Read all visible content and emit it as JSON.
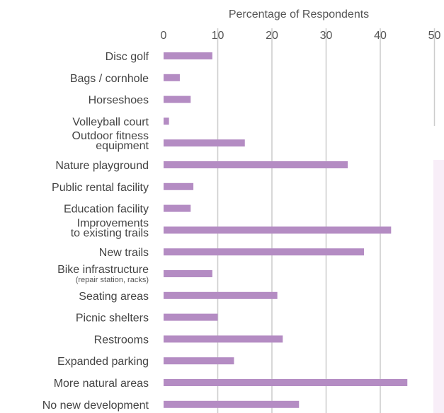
{
  "chart_data": {
    "type": "bar",
    "orientation": "horizontal",
    "xlabel": "Percentage of Respondents",
    "xlim": [
      0,
      50
    ],
    "xticks": [
      "0",
      "10",
      "20",
      "30",
      "40",
      "50"
    ],
    "grid": true,
    "bar_color": "#b48cc3",
    "grid_color": "#cccccc",
    "categories": [
      {
        "lines": [
          "Disc golf"
        ],
        "value": 9
      },
      {
        "lines": [
          "Bags / cornhole"
        ],
        "value": 3
      },
      {
        "lines": [
          "Horseshoes"
        ],
        "value": 5
      },
      {
        "lines": [
          "Volleyball court"
        ],
        "value": 1
      },
      {
        "lines": [
          "Outdoor fitness",
          "equipment"
        ],
        "value": 15
      },
      {
        "lines": [
          "Nature playground"
        ],
        "value": 34
      },
      {
        "lines": [
          "Public rental facility"
        ],
        "value": 5.5
      },
      {
        "lines": [
          "Education facility"
        ],
        "value": 5
      },
      {
        "lines": [
          "Improvements",
          "to existing trails"
        ],
        "value": 42
      },
      {
        "lines": [
          "New trails"
        ],
        "value": 37
      },
      {
        "lines": [
          "Bike infrastructure"
        ],
        "sub": "(repair station, racks)",
        "value": 9
      },
      {
        "lines": [
          "Seating areas"
        ],
        "value": 21
      },
      {
        "lines": [
          "Picnic shelters"
        ],
        "value": 10
      },
      {
        "lines": [
          "Restrooms"
        ],
        "value": 22
      },
      {
        "lines": [
          "Expanded parking"
        ],
        "value": 13
      },
      {
        "lines": [
          "More natural areas"
        ],
        "value": 45
      },
      {
        "lines": [
          "No new development"
        ],
        "value": 25
      }
    ]
  }
}
